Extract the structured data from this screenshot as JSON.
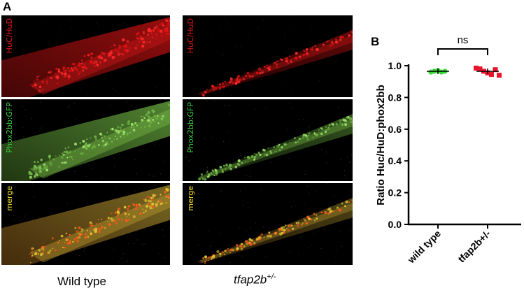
{
  "panel_a_label": "A",
  "panel_b_label": "B",
  "micrographs": {
    "wild_type": {
      "rows": [
        {
          "label": "HuC/HuD",
          "channel": "red"
        },
        {
          "label": "Phox2bb:GFP",
          "channel": "green"
        },
        {
          "label": "merge",
          "channel": "merge"
        }
      ]
    },
    "mutant": {
      "rows": [
        {
          "label": "HuC/HuD",
          "channel": "red"
        },
        {
          "label": "Phox2bb:GFP",
          "channel": "green"
        },
        {
          "label": "merge",
          "channel": "merge"
        }
      ]
    }
  },
  "captions": {
    "wild_type": "Wild type",
    "mutant_base": "tfap2b",
    "mutant_sup": "+/-"
  },
  "colors": {
    "red_channel": "#e01818",
    "green_channel": "#38c83a",
    "merge_label": "#f2e02c",
    "wild_type_points": "#37d536",
    "mutant_points": "#e8142c"
  },
  "chart_data": {
    "type": "scatter",
    "ylabel": "Ratio Huc/HuD:phox2bb",
    "ylim": [
      0.0,
      1.0
    ],
    "yticks": [
      "0.0",
      "0.2",
      "0.4",
      "0.6",
      "0.8",
      "1.0"
    ],
    "categories": [
      "wild type",
      "tfap2b+/-"
    ],
    "series": [
      {
        "category": "wild type",
        "values": [
          0.96,
          0.965,
          0.97,
          0.96,
          0.965
        ],
        "mean": 0.965
      },
      {
        "category": "tfap2b+/-",
        "values": [
          0.985,
          0.98,
          0.965,
          0.955,
          0.945,
          0.975,
          0.94
        ],
        "mean": 0.965
      }
    ],
    "annotation": "ns"
  }
}
